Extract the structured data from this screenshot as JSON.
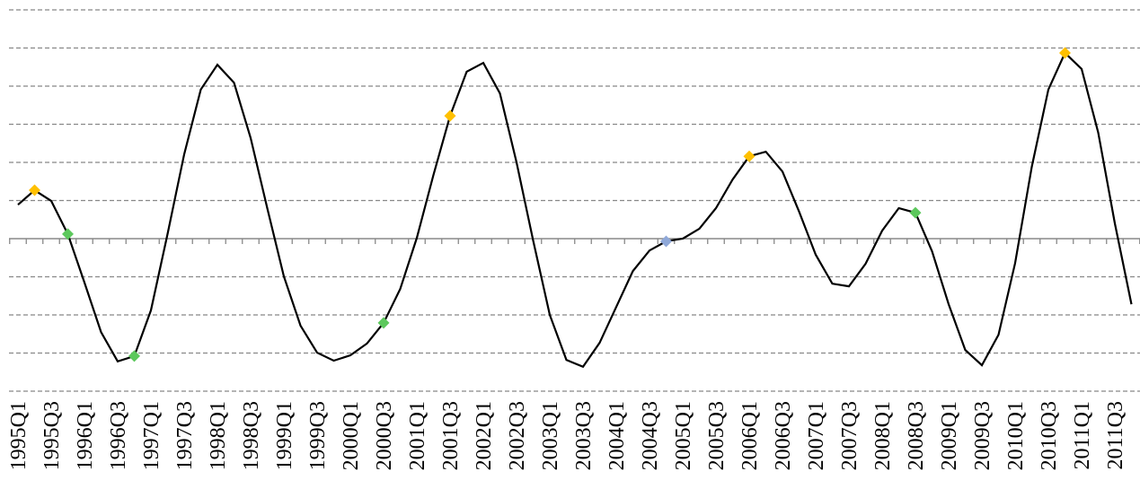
{
  "chart_data": {
    "type": "line",
    "categories": [
      "1995Q1",
      null,
      "1995Q3",
      null,
      "1996Q1",
      null,
      "1996Q3",
      null,
      "1997Q1",
      null,
      "1997Q3",
      null,
      "1998Q1",
      null,
      "1998Q3",
      null,
      "1999Q1",
      null,
      "1999Q3",
      null,
      "2000Q1",
      null,
      "2000Q3",
      null,
      "2001Q1",
      null,
      "2001Q3",
      null,
      "2002Q1",
      null,
      "2002Q3",
      null,
      "2003Q1",
      null,
      "2003Q3",
      null,
      "2004Q1",
      null,
      "2004Q3",
      null,
      "2005Q1",
      null,
      "2005Q3",
      null,
      "2006Q1",
      null,
      "2006Q3",
      null,
      "2007Q1",
      null,
      "2007Q3",
      null,
      "2008Q1",
      null,
      "2008Q3",
      null,
      "2009Q1",
      null,
      "2009Q3",
      null,
      "2010Q1",
      null,
      "2010Q3",
      null,
      "2011Q1",
      null,
      "2011Q3",
      null
    ],
    "series": [
      {
        "color": "#000000",
        "style": "line",
        "values": [
          0.89,
          1.27,
          0.99,
          0.12,
          -1.15,
          -2.45,
          -3.22,
          -3.08,
          -1.88,
          0.12,
          2.21,
          3.91,
          4.56,
          4.09,
          2.64,
          0.8,
          -0.99,
          -2.28,
          -2.99,
          -3.2,
          -3.06,
          -2.75,
          -2.21,
          -1.32,
          0.02,
          1.67,
          3.22,
          4.38,
          4.61,
          3.81,
          2.0,
          -0.05,
          -2.0,
          -3.18,
          -3.36,
          -2.73,
          -1.79,
          -0.85,
          -0.31,
          -0.07,
          0,
          0.26,
          0.8,
          1.55,
          2.16,
          2.28,
          1.76,
          0.71,
          -0.42,
          -1.18,
          -1.25,
          -0.66,
          0.21,
          0.8,
          0.68,
          -0.33,
          -1.72,
          -2.92,
          -3.32,
          -2.52,
          -0.64,
          1.88,
          3.91,
          4.87,
          4.45,
          2.78,
          0.4,
          -1.72
        ]
      },
      {
        "color": "#ffc000",
        "style": "diamond",
        "values": [
          null,
          1.27,
          null,
          null,
          null,
          null,
          null,
          null,
          null,
          null,
          null,
          null,
          null,
          null,
          null,
          null,
          null,
          null,
          null,
          null,
          null,
          null,
          null,
          null,
          null,
          null,
          3.22,
          null,
          null,
          null,
          null,
          null,
          null,
          null,
          null,
          null,
          null,
          null,
          null,
          null,
          null,
          null,
          null,
          null,
          2.16,
          null,
          null,
          null,
          null,
          null,
          null,
          null,
          null,
          null,
          null,
          null,
          null,
          null,
          null,
          null,
          null,
          null,
          null,
          4.87,
          null,
          null,
          null,
          null
        ]
      },
      {
        "color": "#5cc85c",
        "style": "diamond",
        "values": [
          null,
          null,
          null,
          0.12,
          null,
          null,
          null,
          -3.08,
          null,
          null,
          null,
          null,
          null,
          null,
          null,
          null,
          null,
          null,
          null,
          null,
          null,
          null,
          -2.21,
          null,
          null,
          null,
          null,
          null,
          null,
          null,
          null,
          null,
          null,
          null,
          null,
          null,
          null,
          null,
          null,
          null,
          null,
          null,
          null,
          null,
          null,
          null,
          null,
          null,
          null,
          null,
          null,
          null,
          null,
          null,
          0.68,
          null,
          null,
          null,
          null,
          null,
          null,
          null,
          null,
          null,
          null,
          null,
          null,
          null
        ]
      },
      {
        "color": "#8fa8d8",
        "style": "diamond",
        "values": [
          null,
          null,
          null,
          null,
          null,
          null,
          null,
          null,
          null,
          null,
          null,
          null,
          null,
          null,
          null,
          null,
          null,
          null,
          null,
          null,
          null,
          null,
          null,
          null,
          null,
          null,
          null,
          null,
          null,
          null,
          null,
          null,
          null,
          null,
          null,
          null,
          null,
          null,
          null,
          -0.07,
          null,
          null,
          null,
          null,
          null,
          null,
          null,
          null,
          null,
          null,
          null,
          null,
          null,
          null,
          null,
          null,
          null,
          null,
          null,
          null,
          null,
          null,
          null,
          null,
          null,
          null,
          null,
          null
        ]
      }
    ],
    "ylim": [
      -4,
      6
    ],
    "yticks": [
      -4,
      -3,
      -2,
      -1,
      0,
      1,
      2,
      3,
      4,
      5,
      6
    ],
    "grid": true
  }
}
